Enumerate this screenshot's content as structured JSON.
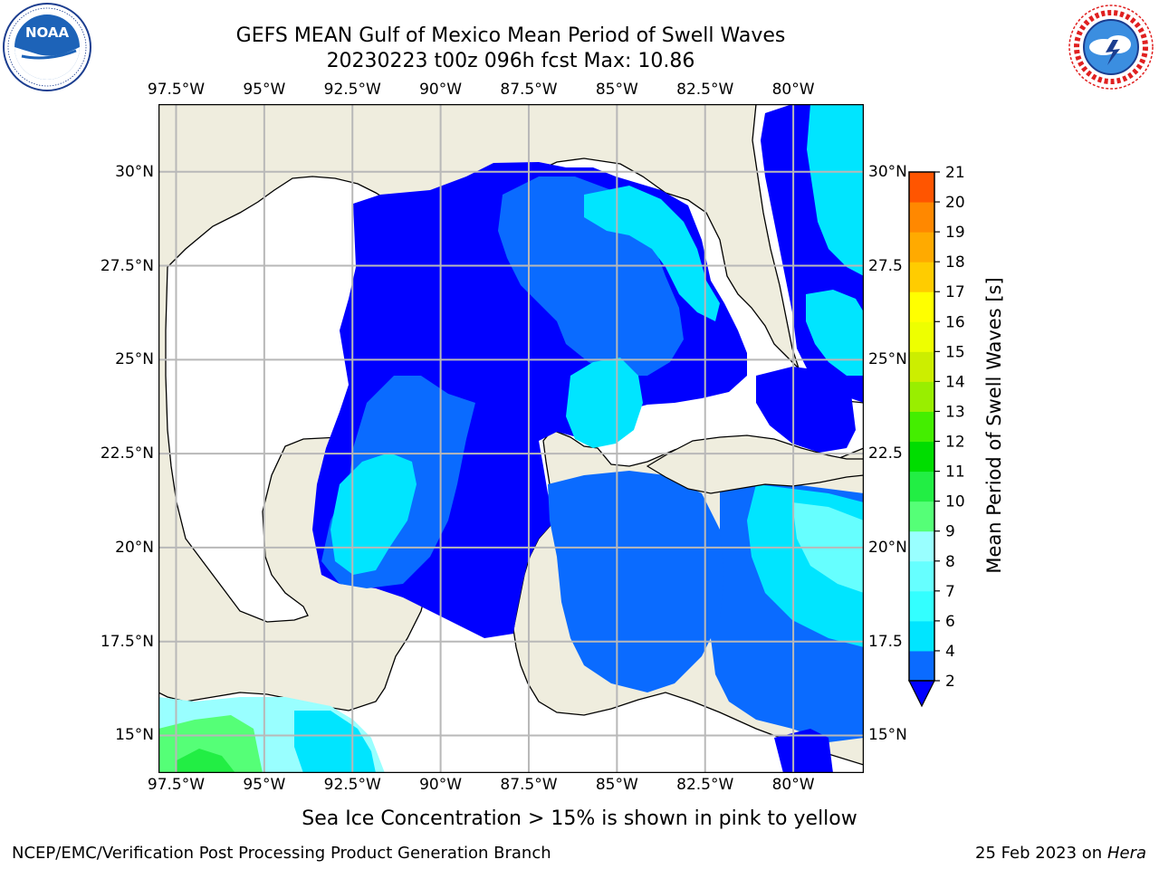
{
  "title": {
    "line1": "GEFS MEAN Gulf of Mexico Mean Period of Swell Waves",
    "line2": "20230223 t00z 096h fcst   Max: 10.86"
  },
  "logos": {
    "left": {
      "name": "noaa-logo",
      "text": "NOAA",
      "ring_text": "NATIONAL OCEANIC AND ATMOSPHERIC ADMINISTRATION · U.S. DEPARTMENT OF COMMERCE"
    },
    "right": {
      "name": "nws-logo",
      "ring_text": "NATIONAL WEATHER SERVICE"
    }
  },
  "map": {
    "lon_ticks": [
      "97.5°W",
      "95°W",
      "92.5°W",
      "90°W",
      "87.5°W",
      "85°W",
      "82.5°W",
      "80°W"
    ],
    "lat_ticks_left": [
      "30°N",
      "27.5°N",
      "25°N",
      "22.5°N",
      "20°N",
      "17.5°N",
      "15°N"
    ],
    "lat_ticks_right": [
      "30°N",
      "27.5",
      "25°N",
      "22.5",
      "20°N",
      "17.5",
      "15°N"
    ],
    "lon_range": [
      -98,
      -78
    ],
    "lat_range": [
      14,
      31.8
    ],
    "colors": {
      "land": "#efedde",
      "ocean": "#ffffff",
      "grid": "#b8b8b8",
      "coast": "#000000"
    }
  },
  "colorbar": {
    "label": "Mean Period of Swell Waves [s]",
    "ticks": [
      "2",
      "4",
      "6",
      "7",
      "8",
      "9",
      "10",
      "11",
      "12",
      "13",
      "14",
      "15",
      "16",
      "17",
      "18",
      "19",
      "20",
      "21"
    ],
    "levels": [
      2,
      4,
      6,
      7,
      8,
      9,
      10,
      11,
      12,
      13,
      14,
      15,
      16,
      17,
      18,
      19,
      20,
      21
    ],
    "colors": [
      "#0a6bff",
      "#00e5ff",
      "#33ffff",
      "#66ffff",
      "#99ffff",
      "#55ff77",
      "#22ee44",
      "#00dd00",
      "#44ee00",
      "#99ee00",
      "#ccee00",
      "#eeff00",
      "#ffff00",
      "#ffcc00",
      "#ffaa00",
      "#ff8800",
      "#ff5500",
      "#ff2200",
      "#ff0000"
    ],
    "extend_color": "#0000ff"
  },
  "caption": "Sea Ice Concentration > 15% is shown in pink to yellow",
  "footer": {
    "left": "NCEP/EMC/Verification Post Processing Product Generation Branch",
    "right_prefix": "25 Feb 2023 on",
    "right_italic": "Hera"
  }
}
